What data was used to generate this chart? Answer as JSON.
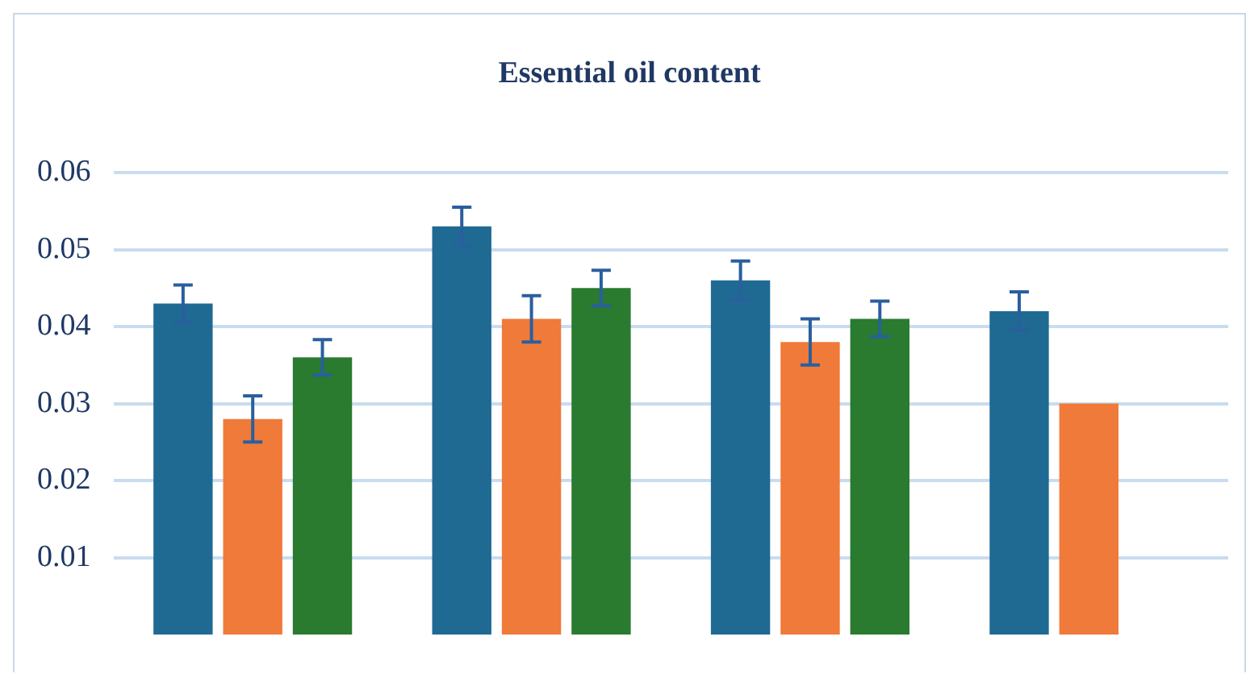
{
  "chart_data": {
    "type": "bar",
    "title": "Essential oil content",
    "categories": [
      null,
      null,
      null,
      null
    ],
    "series": [
      {
        "color": "#1f6a93",
        "values": [
          0.043,
          0.053,
          0.046,
          0.042
        ],
        "errors": [
          0.0024,
          0.0025,
          0.0025,
          0.0025
        ]
      },
      {
        "color": "#f07a3a",
        "values": [
          0.028,
          0.041,
          0.038,
          0.03
        ],
        "errors": [
          0.003,
          0.003,
          0.003,
          null
        ]
      },
      {
        "color": "#2a7a30",
        "values": [
          0.036,
          0.045,
          0.041,
          null
        ],
        "errors": [
          0.0023,
          0.0023,
          0.0023,
          null
        ]
      }
    ],
    "ylim": [
      0,
      0.06
    ],
    "yticks": [
      0.01,
      0.02,
      0.03,
      0.04,
      0.05,
      0.06
    ],
    "grid": "y",
    "legend": false
  }
}
